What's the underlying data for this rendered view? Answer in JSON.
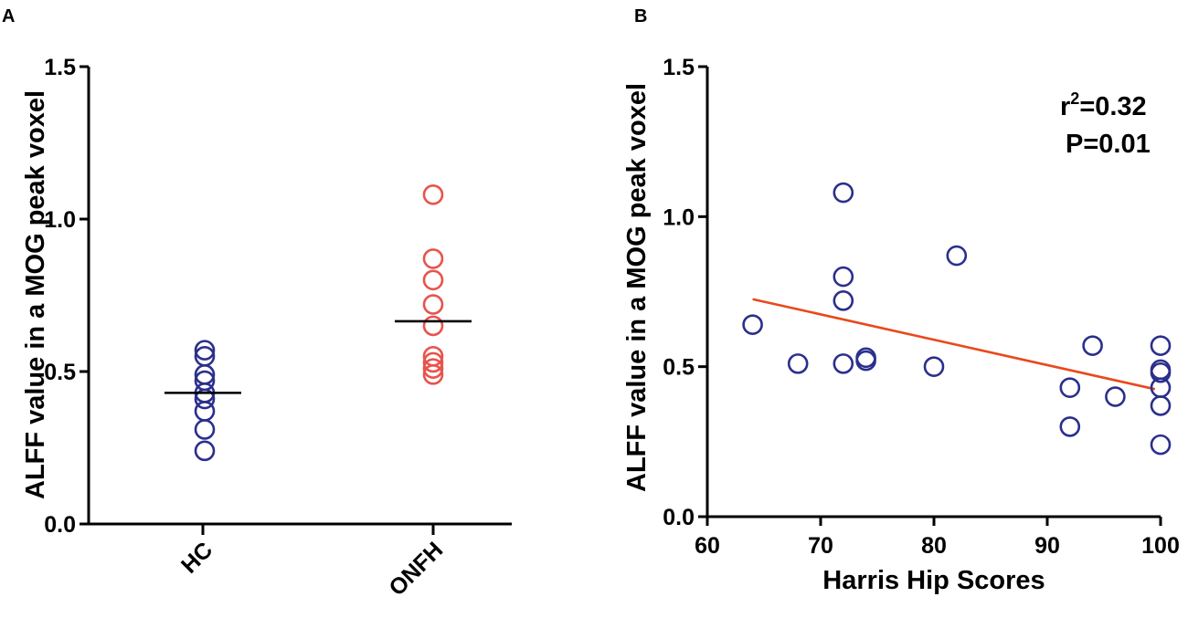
{
  "chart_data": [
    {
      "panel": "A",
      "type": "scatter",
      "ylabel": "ALFF value in a MOG peak voxel",
      "ylim": [
        0,
        1.5
      ],
      "yticks": [
        "0.0",
        "0.5",
        "1.0",
        "1.5"
      ],
      "categories": [
        "HC",
        "ONFH"
      ],
      "series": [
        {
          "values": [
            0.57,
            0.55,
            0.49,
            0.47,
            0.43,
            0.41,
            0.37,
            0.31,
            0.24
          ],
          "mean": 0.43,
          "color": "#2b2f8c"
        },
        {
          "values": [
            1.08,
            0.87,
            0.8,
            0.72,
            0.65,
            0.55,
            0.53,
            0.51,
            0.49
          ],
          "mean": 0.665,
          "color": "#e8534d"
        }
      ]
    },
    {
      "panel": "B",
      "type": "scatter",
      "xlabel": "Harris Hip Scores",
      "ylabel": "ALFF value in a MOG peak voxel",
      "xlim": [
        60,
        100
      ],
      "ylim": [
        0,
        1.5
      ],
      "xticks": [
        "60",
        "70",
        "80",
        "90",
        "100"
      ],
      "yticks": [
        "0.0",
        "0.5",
        "1.0",
        "1.5"
      ],
      "points": [
        {
          "x": 64,
          "y": 0.64
        },
        {
          "x": 68,
          "y": 0.51
        },
        {
          "x": 72,
          "y": 1.08
        },
        {
          "x": 72,
          "y": 0.8
        },
        {
          "x": 72,
          "y": 0.72
        },
        {
          "x": 72,
          "y": 0.51
        },
        {
          "x": 74,
          "y": 0.53
        },
        {
          "x": 74,
          "y": 0.52
        },
        {
          "x": 80,
          "y": 0.5
        },
        {
          "x": 82,
          "y": 0.87
        },
        {
          "x": 92,
          "y": 0.43
        },
        {
          "x": 92,
          "y": 0.3
        },
        {
          "x": 94,
          "y": 0.57
        },
        {
          "x": 96,
          "y": 0.4
        },
        {
          "x": 100,
          "y": 0.57
        },
        {
          "x": 100,
          "y": 0.49
        },
        {
          "x": 100,
          "y": 0.48
        },
        {
          "x": 100,
          "y": 0.43
        },
        {
          "x": 100,
          "y": 0.37
        },
        {
          "x": 100,
          "y": 0.24
        }
      ],
      "point_color": "#2b2f8c",
      "fit_line": {
        "x": [
          64,
          99.5
        ],
        "y": [
          0.725,
          0.425
        ],
        "color": "#e8491d"
      },
      "annotation": {
        "r2_prefix": "r",
        "r2_sup": "2",
        "r2_value": "=0.32",
        "p_text": "P=0.01"
      }
    }
  ]
}
